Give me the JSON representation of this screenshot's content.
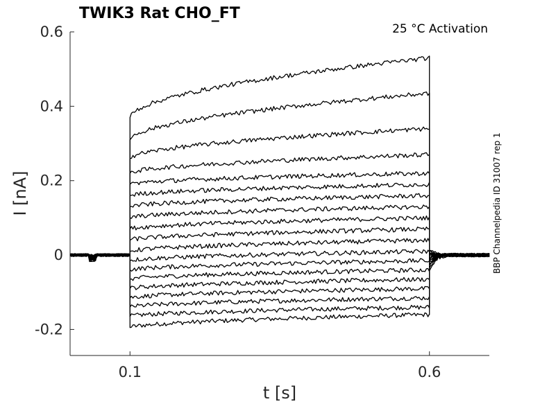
{
  "chart_data": {
    "type": "line",
    "title": "TWIK3  Rat  CHO_FT",
    "annotation": "25 °C  Activation",
    "side_label": "BBP Channelpedia ID 31007 rep 1",
    "xlabel": "t [s]",
    "ylabel": "I [nA]",
    "xlim": [
      0.0,
      0.7
    ],
    "ylim": [
      -0.27,
      0.6
    ],
    "x_ticks": [
      {
        "value": 0.1,
        "label": "0.1"
      },
      {
        "value": 0.6,
        "label": "0.6"
      }
    ],
    "y_ticks": [
      {
        "value": 0.6,
        "label": "0.6"
      },
      {
        "value": 0.4,
        "label": "0.4"
      },
      {
        "value": 0.2,
        "label": "0.2"
      },
      {
        "value": 0.0,
        "label": "0"
      },
      {
        "value": -0.2,
        "label": "-0.2"
      }
    ],
    "grid": false,
    "color": "#000000",
    "protocol": {
      "step_on": 0.1,
      "step_off": 0.6,
      "holding_current": 0.0
    },
    "series": [
      {
        "onset": -0.195,
        "steady": -0.16
      },
      {
        "onset": -0.165,
        "steady": -0.14
      },
      {
        "onset": -0.14,
        "steady": -0.115
      },
      {
        "onset": -0.115,
        "steady": -0.09
      },
      {
        "onset": -0.09,
        "steady": -0.065
      },
      {
        "onset": -0.065,
        "steady": -0.04
      },
      {
        "onset": -0.04,
        "steady": -0.015
      },
      {
        "onset": -0.015,
        "steady": 0.01
      },
      {
        "onset": 0.01,
        "steady": 0.04
      },
      {
        "onset": 0.04,
        "steady": 0.07
      },
      {
        "onset": 0.07,
        "steady": 0.1
      },
      {
        "onset": 0.1,
        "steady": 0.13
      },
      {
        "onset": 0.13,
        "steady": 0.16
      },
      {
        "onset": 0.16,
        "steady": 0.19
      },
      {
        "onset": 0.19,
        "steady": 0.22
      },
      {
        "onset": 0.22,
        "steady": 0.27
      },
      {
        "onset": 0.26,
        "steady": 0.34
      },
      {
        "onset": 0.31,
        "steady": 0.435
      },
      {
        "onset": 0.37,
        "steady": 0.53
      }
    ]
  }
}
